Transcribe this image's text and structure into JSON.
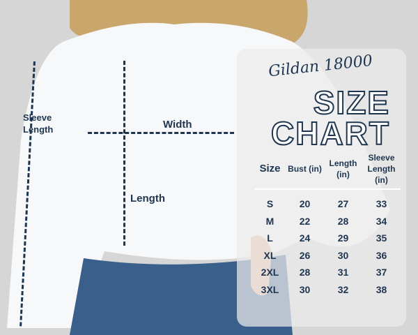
{
  "brand": "Gildan 18000",
  "title_line1": "SIZE",
  "title_line2": "CHART",
  "diagram_labels": {
    "sleeve": "Sleeve Length",
    "width": "Width",
    "length": "Length"
  },
  "table": {
    "headers": [
      "Size",
      "Bust (in)",
      "Length (in)",
      "Sleeve Length (in)"
    ],
    "rows": [
      [
        "S",
        "20",
        "27",
        "33"
      ],
      [
        "M",
        "22",
        "28",
        "34"
      ],
      [
        "L",
        "24",
        "29",
        "35"
      ],
      [
        "XL",
        "26",
        "30",
        "36"
      ],
      [
        "2XL",
        "28",
        "31",
        "37"
      ],
      [
        "3XL",
        "30",
        "32",
        "38"
      ]
    ]
  },
  "colors": {
    "text": "#1e3550",
    "background": "#d6d6d6"
  }
}
